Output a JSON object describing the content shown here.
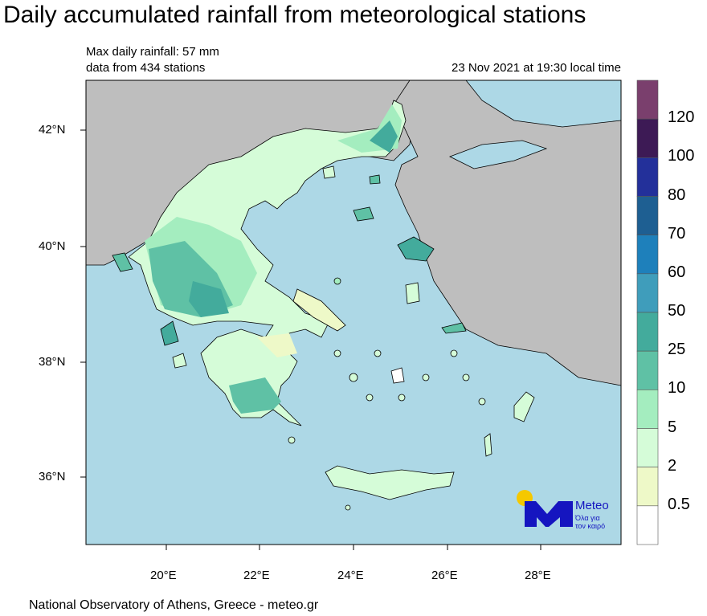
{
  "header": {
    "title": "Daily accumulated rainfall from meteorological stations",
    "max_rainfall": "Max daily rainfall: 57 mm",
    "stations": "data from 434 stations",
    "datetime": "23 Nov 2021 at 19:30 local time"
  },
  "map": {
    "lat_labels": [
      "42°N",
      "40°N",
      "38°N",
      "36°N"
    ],
    "lon_labels": [
      "20°E",
      "22°E",
      "24°E",
      "26°E",
      "28°E"
    ],
    "colors": {
      "sea": "#add8e6",
      "other_land": "#bebebe",
      "greece_base": "#d5fcd8"
    }
  },
  "colorbar": {
    "labels": [
      "120",
      "100",
      "80",
      "70",
      "60",
      "50",
      "25",
      "10",
      "5",
      "2",
      "0.5"
    ],
    "colors": [
      "#7a3f6d",
      "#3d1a55",
      "#23309a",
      "#1e5f92",
      "#1e80bb",
      "#3f9dbb",
      "#43ab9c",
      "#5fc1a5",
      "#a4edbf",
      "#d5fcd8",
      "#eef9c8",
      "#ffffff"
    ]
  },
  "logo": {
    "name": "Meteo",
    "tagline1": "Όλα για",
    "tagline2": "τον καιρό"
  },
  "footer": "National Observatory of Athens, Greece - meteo.gr"
}
